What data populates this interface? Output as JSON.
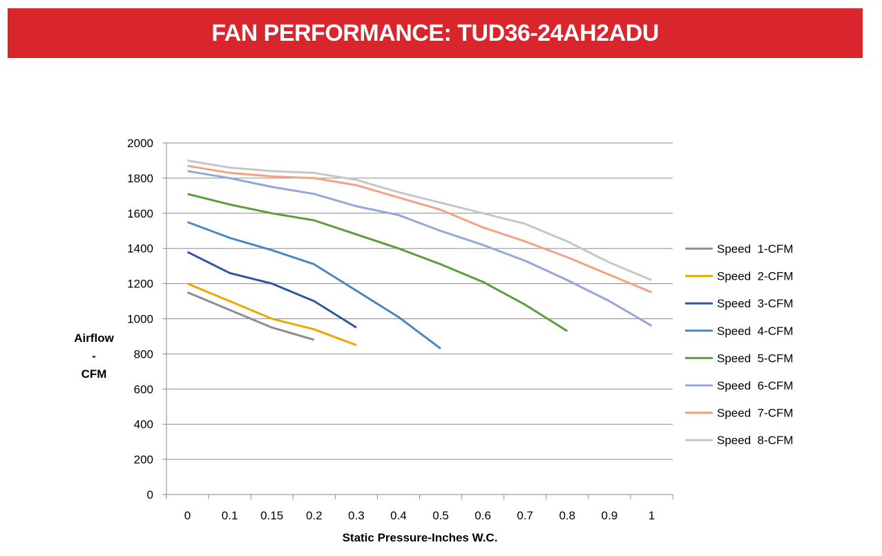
{
  "header": {
    "title": "FAN PERFORMANCE: TUD36-24AH2ADU",
    "color": "#D9262C"
  },
  "chart_data": {
    "type": "line",
    "x": [
      "0",
      "0.1",
      "0.15",
      "0.2",
      "0.3",
      "0.4",
      "0.5",
      "0.6",
      "0.7",
      "0.8",
      "0.9",
      "1"
    ],
    "xlabel": "Static Pressure-Inches W.C.",
    "ylabel_lines": [
      "Airflow",
      "-",
      "CFM"
    ],
    "ylim": [
      0,
      2000
    ],
    "yticks": [
      0,
      200,
      400,
      600,
      800,
      1000,
      1200,
      1400,
      1600,
      1800,
      2000
    ],
    "grid": "horizontal",
    "legend": "right",
    "series": [
      {
        "name": "Speed  1-CFM",
        "color": "#8C8C8C",
        "values": [
          1150,
          1050,
          950,
          880,
          null,
          null,
          null,
          null,
          null,
          null,
          null,
          null
        ]
      },
      {
        "name": "Speed  2-CFM",
        "color": "#E8A900",
        "values": [
          1200,
          1100,
          1000,
          940,
          850,
          null,
          null,
          null,
          null,
          null,
          null,
          null
        ]
      },
      {
        "name": "Speed  3-CFM",
        "color": "#2F55A4",
        "values": [
          1380,
          1260,
          1200,
          1100,
          950,
          null,
          null,
          null,
          null,
          null,
          null,
          null
        ]
      },
      {
        "name": "Speed  4-CFM",
        "color": "#4A86C0",
        "values": [
          1550,
          1460,
          1390,
          1310,
          1160,
          1010,
          830,
          null,
          null,
          null,
          null,
          null
        ]
      },
      {
        "name": "Speed  5-CFM",
        "color": "#5A9E3A",
        "values": [
          1710,
          1650,
          1600,
          1560,
          1480,
          1400,
          1310,
          1210,
          1080,
          930,
          null,
          null
        ]
      },
      {
        "name": "Speed  6-CFM",
        "color": "#94A6DC",
        "values": [
          1840,
          1800,
          1750,
          1710,
          1640,
          1590,
          1500,
          1420,
          1330,
          1220,
          1100,
          960
        ]
      },
      {
        "name": "Speed  7-CFM",
        "color": "#F3A183",
        "values": [
          1870,
          1830,
          1810,
          1800,
          1760,
          1690,
          1620,
          1520,
          1440,
          1350,
          1250,
          1150
        ]
      },
      {
        "name": "Speed  8-CFM",
        "color": "#C6C6C6",
        "values": [
          1900,
          1860,
          1840,
          1830,
          1790,
          1720,
          1660,
          1600,
          1540,
          1440,
          1320,
          1220
        ]
      }
    ]
  }
}
